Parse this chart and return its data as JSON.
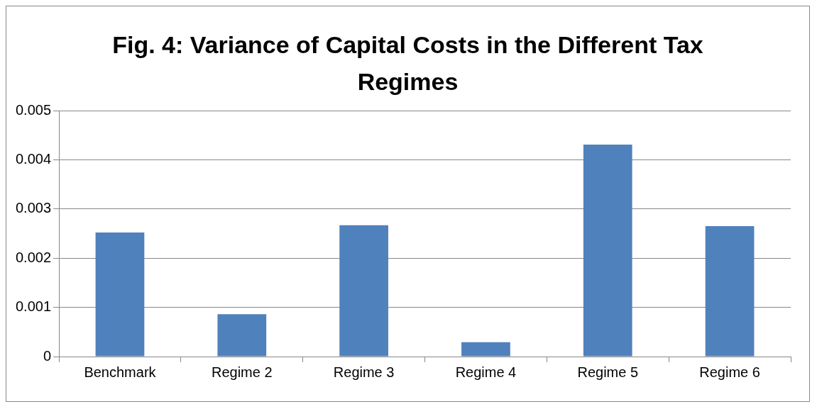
{
  "chart_data": {
    "type": "bar",
    "title": "Fig. 4: Variance of Capital Costs in the Different Tax Regimes",
    "categories": [
      "Benchmark",
      "Regime 2",
      "Regime 3",
      "Regime 4",
      "Regime 5",
      "Regime 6"
    ],
    "values": [
      0.00252,
      0.00086,
      0.00267,
      0.00029,
      0.00431,
      0.00265
    ],
    "color": "#4f81bd",
    "ylim": [
      0,
      0.005
    ],
    "yticks": [
      0,
      0.001,
      0.002,
      0.003,
      0.004,
      0.005
    ],
    "grid": "y",
    "legend": false
  }
}
